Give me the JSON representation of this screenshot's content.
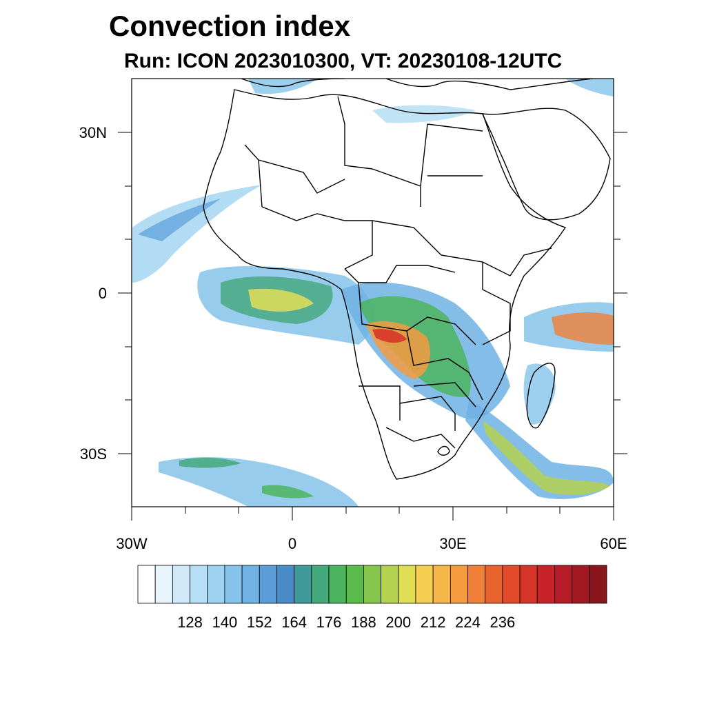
{
  "title": "Convection index",
  "subtitle": "Run: ICON 2023010300,  VT: 20230108-12UTC",
  "axes": {
    "lat_labels": [
      {
        "value": 30,
        "text": "30N"
      },
      {
        "value": 0,
        "text": "0"
      },
      {
        "value": -30,
        "text": "30S"
      }
    ],
    "lon_labels": [
      {
        "value": -30,
        "text": "30W"
      },
      {
        "value": 0,
        "text": "0"
      },
      {
        "value": 30,
        "text": "30E"
      },
      {
        "value": 60,
        "text": "60E"
      }
    ],
    "lon_range": [
      -30,
      60
    ],
    "lat_range": [
      -40,
      40
    ]
  },
  "colorbar": {
    "colors": [
      "#ffffff",
      "#e8f5fc",
      "#cfe9f8",
      "#b6def4",
      "#9dd3f0",
      "#85c3ea",
      "#6fb2e3",
      "#5a9dd8",
      "#4a8cc8",
      "#3f9a9a",
      "#43a87a",
      "#4cb45e",
      "#5abc4a",
      "#86c64c",
      "#b4d14f",
      "#e0de55",
      "#f6cf52",
      "#f7b64a",
      "#f59b40",
      "#f07f37",
      "#e9632f",
      "#e14b2c",
      "#d7342a",
      "#c9232a",
      "#b61c27",
      "#a01922",
      "#8a161d"
    ],
    "labels": [
      "128",
      "140",
      "152",
      "164",
      "176",
      "188",
      "200",
      "212",
      "224",
      "236"
    ]
  }
}
